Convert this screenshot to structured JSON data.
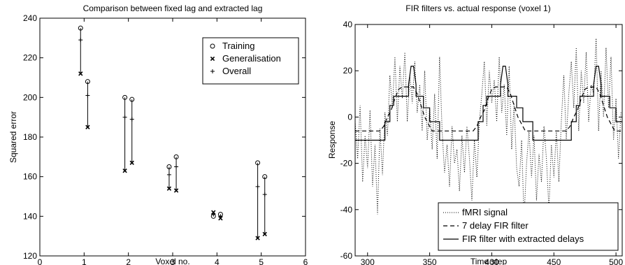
{
  "chart_data": [
    {
      "type": "scatter",
      "title": "Comparison between fixed lag and extracted lag",
      "xlabel": "Voxel no.",
      "ylabel": "Squared error",
      "xlim": [
        0,
        6
      ],
      "ylim": [
        120,
        240
      ],
      "xticks": [
        0,
        1,
        2,
        3,
        4,
        5,
        6
      ],
      "yticks": [
        120,
        140,
        160,
        180,
        200,
        220,
        240
      ],
      "grid": false,
      "legend_position": "top-right",
      "legend": [
        {
          "label": "Training",
          "marker": "circle"
        },
        {
          "label": "Generalisation",
          "marker": "x"
        },
        {
          "label": "Overall",
          "marker": "plus"
        }
      ],
      "points": [
        {
          "x": 0.92,
          "training": 235,
          "generalisation": 212,
          "overall": 229
        },
        {
          "x": 1.08,
          "training": 208,
          "generalisation": 185,
          "overall": 201
        },
        {
          "x": 1.92,
          "training": 200,
          "generalisation": 163,
          "overall": 190
        },
        {
          "x": 2.08,
          "training": 199,
          "generalisation": 167,
          "overall": 189
        },
        {
          "x": 2.92,
          "training": 165,
          "generalisation": 154,
          "overall": 161
        },
        {
          "x": 3.08,
          "training": 170,
          "generalisation": 153,
          "overall": 165
        },
        {
          "x": 3.92,
          "training": 140,
          "generalisation": 142,
          "overall": 141
        },
        {
          "x": 4.08,
          "training": 141,
          "generalisation": 139,
          "overall": 140
        },
        {
          "x": 4.92,
          "training": 167,
          "generalisation": 129,
          "overall": 155
        },
        {
          "x": 5.08,
          "training": 160,
          "generalisation": 131,
          "overall": 151
        }
      ]
    },
    {
      "type": "line",
      "title": "FIR filters vs. actual response (voxel 1)",
      "xlabel": "Time step",
      "ylabel": "Response",
      "xlim": [
        290,
        505
      ],
      "ylim": [
        -60,
        40
      ],
      "xticks": [
        300,
        350,
        400,
        450,
        500
      ],
      "yticks": [
        -60,
        -40,
        -20,
        0,
        20,
        40
      ],
      "grid": false,
      "legend_position": "bottom-right",
      "series": [
        {
          "name": "fMRI signal",
          "style": "dotted",
          "x": [
            290,
            292,
            294,
            296,
            298,
            300,
            302,
            304,
            306,
            308,
            310,
            312,
            314,
            316,
            318,
            320,
            322,
            324,
            326,
            328,
            330,
            332,
            334,
            336,
            338,
            340,
            342,
            344,
            346,
            348,
            350,
            352,
            354,
            356,
            358,
            360,
            362,
            364,
            366,
            368,
            370,
            372,
            374,
            376,
            378,
            380,
            382,
            384,
            386,
            388,
            390,
            392,
            394,
            396,
            398,
            400,
            402,
            404,
            406,
            408,
            410,
            412,
            414,
            416,
            418,
            420,
            422,
            424,
            426,
            428,
            430,
            432,
            434,
            436,
            438,
            440,
            442,
            444,
            446,
            448,
            450,
            452,
            454,
            456,
            458,
            460,
            462,
            464,
            466,
            468,
            470,
            472,
            474,
            476,
            478,
            480,
            482,
            484,
            486,
            488,
            490,
            492,
            494,
            496,
            498,
            500,
            502,
            504
          ],
          "y": [
            -2,
            -18,
            5,
            -28,
            -8,
            -22,
            3,
            -30,
            -12,
            -42,
            -5,
            -25,
            2,
            -8,
            18,
            4,
            26,
            -2,
            22,
            8,
            28,
            -2,
            18,
            6,
            24,
            2,
            14,
            -6,
            20,
            -10,
            4,
            -14,
            10,
            -18,
            26,
            -6,
            -24,
            -12,
            -30,
            -4,
            -20,
            -14,
            -32,
            -8,
            -24,
            -4,
            -18,
            -36,
            -10,
            -26,
            -2,
            10,
            24,
            -4,
            20,
            6,
            16,
            -2,
            26,
            2,
            14,
            -8,
            22,
            -14,
            6,
            -22,
            -30,
            -10,
            -44,
            -20,
            -6,
            -26,
            -8,
            -36,
            -16,
            -28,
            -4,
            -18,
            -40,
            -12,
            -26,
            -6,
            -28,
            -2,
            18,
            -10,
            10,
            24,
            4,
            30,
            -6,
            20,
            6,
            28,
            -2,
            14,
            10,
            34,
            -6,
            20,
            0,
            30,
            4,
            26,
            -10,
            8,
            -18,
            2
          ]
        },
        {
          "name": "7 delay FIR filter",
          "style": "dashed",
          "x": [
            290,
            310,
            313,
            316,
            319,
            322,
            325,
            328,
            331,
            334,
            337,
            340,
            343,
            346,
            349,
            352,
            385,
            388,
            391,
            394,
            397,
            400,
            403,
            406,
            409,
            412,
            415,
            418,
            421,
            424,
            427,
            460,
            463,
            466,
            469,
            472,
            475,
            478,
            481,
            484,
            487,
            490,
            493,
            496,
            499,
            505
          ],
          "y": [
            -6,
            -6,
            -4,
            0,
            3,
            8,
            12,
            13,
            13,
            13,
            13,
            10,
            5,
            0,
            -3,
            -6,
            -6,
            -4,
            0,
            3,
            8,
            12,
            13,
            13,
            13,
            13,
            10,
            5,
            0,
            -3,
            -6,
            -6,
            -4,
            0,
            3,
            8,
            12,
            13,
            13,
            13,
            10,
            5,
            0,
            -3,
            -6,
            -6
          ]
        },
        {
          "name": "FIR filter with extracted delays",
          "style": "solid",
          "x": [
            290,
            314,
            314,
            318,
            318,
            321,
            321,
            333,
            333,
            335,
            337,
            339,
            339,
            345,
            345,
            350,
            350,
            358,
            358,
            389,
            389,
            393,
            393,
            396,
            396,
            407,
            407,
            409,
            411,
            413,
            413,
            420,
            420,
            425,
            425,
            433,
            433,
            464,
            464,
            468,
            468,
            471,
            471,
            482,
            482,
            484,
            486,
            488,
            488,
            495,
            495,
            500,
            500,
            505
          ],
          "y": [
            -10,
            -10,
            -2,
            -2,
            5,
            5,
            9,
            9,
            14,
            22,
            22,
            14,
            9,
            9,
            4,
            4,
            -2,
            -2,
            -10,
            -10,
            -2,
            -2,
            5,
            5,
            9,
            9,
            14,
            22,
            22,
            14,
            9,
            9,
            4,
            4,
            -2,
            -2,
            -10,
            -10,
            -2,
            -2,
            5,
            5,
            9,
            9,
            14,
            22,
            22,
            14,
            9,
            9,
            4,
            4,
            -2,
            -2
          ]
        }
      ]
    }
  ]
}
